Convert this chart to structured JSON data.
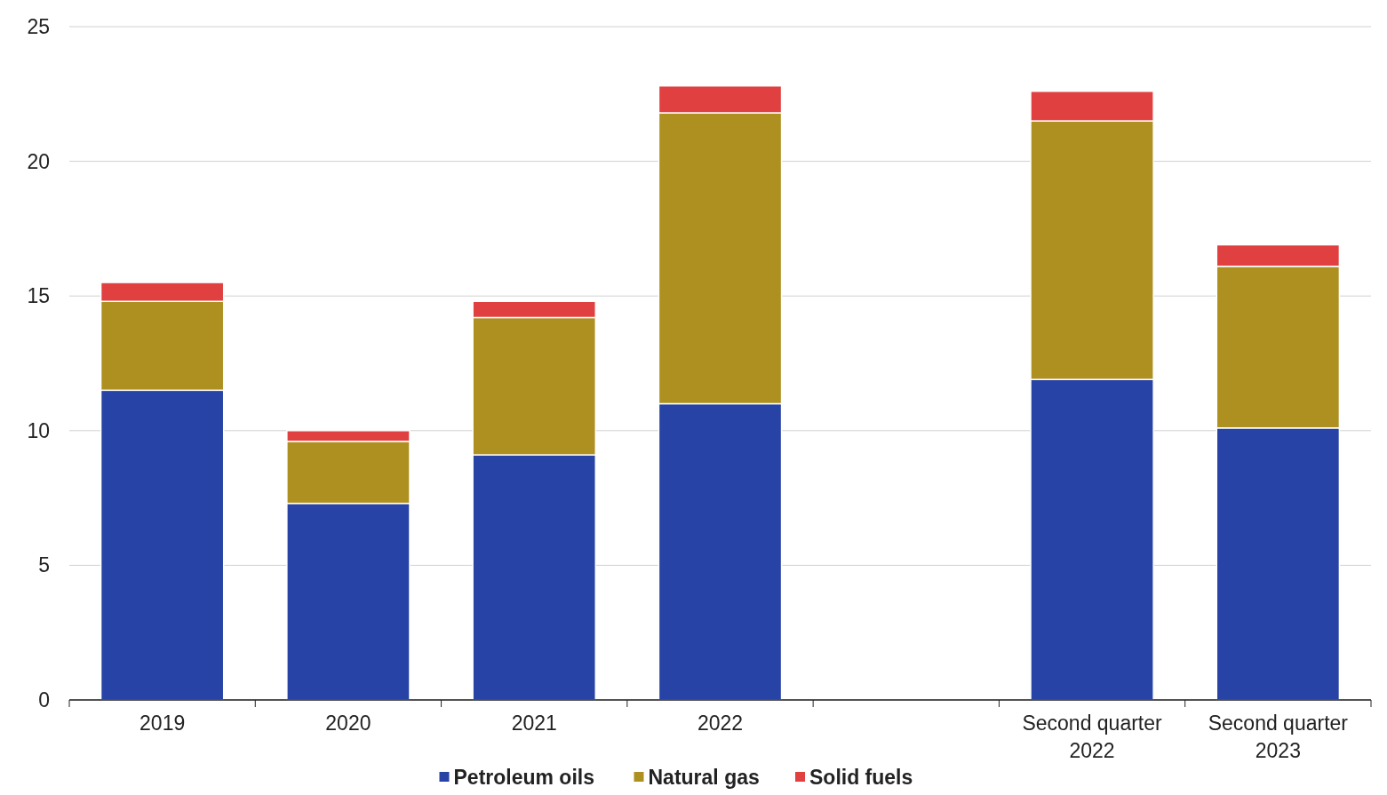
{
  "chart_data": {
    "type": "bar",
    "stacked": true,
    "categories": [
      "2019",
      "2020",
      "2021",
      "2022",
      null,
      "Second quarter 2022",
      "Second quarter 2023"
    ],
    "series": [
      {
        "name": "Petroleum oils",
        "color": "#2643a5",
        "values": [
          11.5,
          7.3,
          9.1,
          11.0,
          null,
          11.9,
          10.1
        ]
      },
      {
        "name": "Natural gas",
        "color": "#ae9020",
        "values": [
          3.3,
          2.3,
          5.1,
          10.8,
          null,
          9.6,
          6.0
        ]
      },
      {
        "name": "Solid fuels",
        "color": "#e04040",
        "values": [
          0.7,
          0.4,
          0.6,
          1.0,
          null,
          1.1,
          0.8
        ]
      }
    ],
    "ylim": [
      0,
      25
    ],
    "yticks": [
      0,
      5,
      10,
      15,
      20,
      25
    ],
    "grid": "y",
    "legend": "bottom"
  }
}
